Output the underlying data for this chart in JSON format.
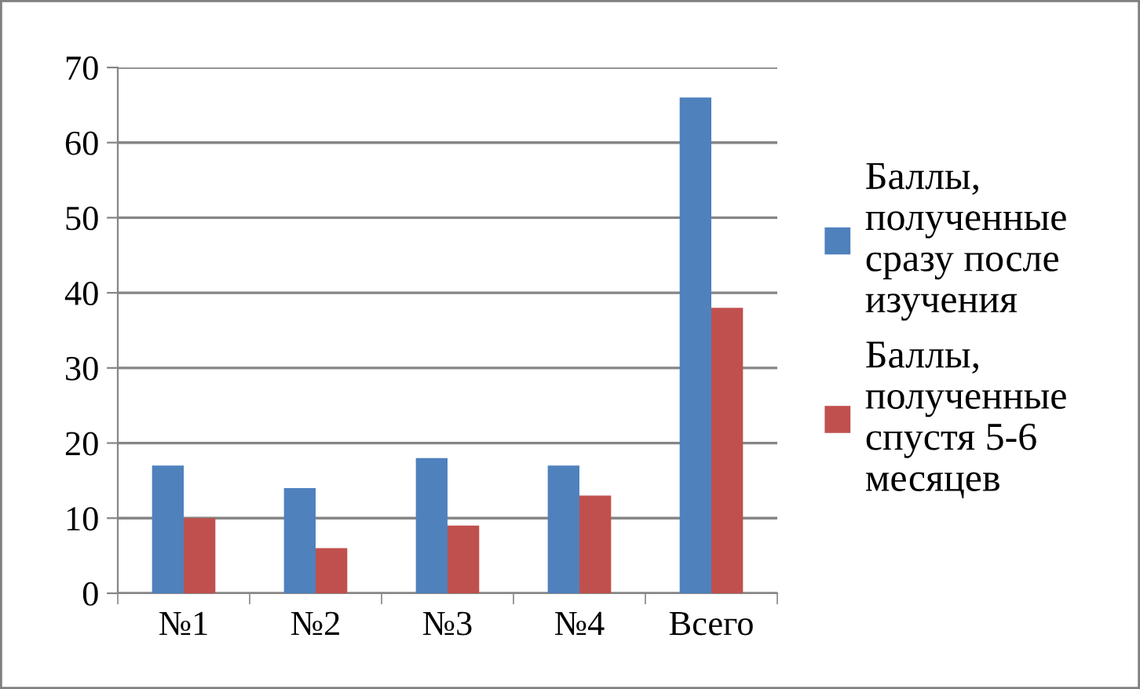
{
  "chart_data": {
    "type": "bar",
    "categories": [
      "№1",
      "№2",
      "№3",
      "№4",
      "Всего"
    ],
    "series": [
      {
        "name": "Баллы,\nполученные\nсразу после\nизучения",
        "color": "#4f81bd",
        "values": [
          17,
          14,
          18,
          17,
          66
        ]
      },
      {
        "name": "Баллы,\nполученные\nспустя 5-6\nмесяцев",
        "color": "#c0504d",
        "values": [
          10,
          6,
          9,
          13,
          38
        ]
      }
    ],
    "ylim": [
      0,
      70
    ],
    "yticks": [
      0,
      10,
      20,
      30,
      40,
      50,
      60,
      70
    ],
    "grid": "y",
    "legend": "right"
  }
}
